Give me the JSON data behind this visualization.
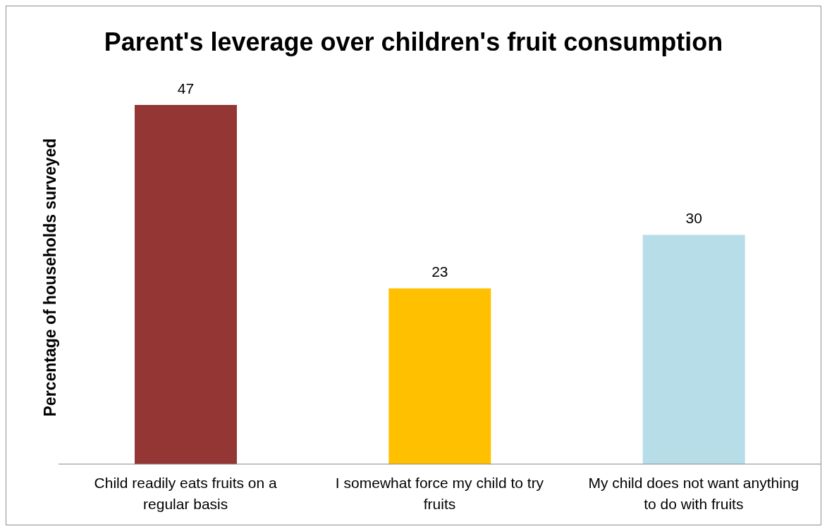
{
  "chart_data": {
    "type": "bar",
    "title": "Parent's leverage over children's fruit consumption",
    "ylabel": "Percentage of households surveyed",
    "categories": [
      "Child readily eats fruits on a regular basis",
      "I somewhat force my child to try fruits",
      "My child does not want anything to do with fruits"
    ],
    "values": [
      47,
      23,
      30
    ],
    "colors": [
      "#943634",
      "#ffc000",
      "#b7dde8"
    ],
    "data_labels": true,
    "tick_labels": "x"
  }
}
